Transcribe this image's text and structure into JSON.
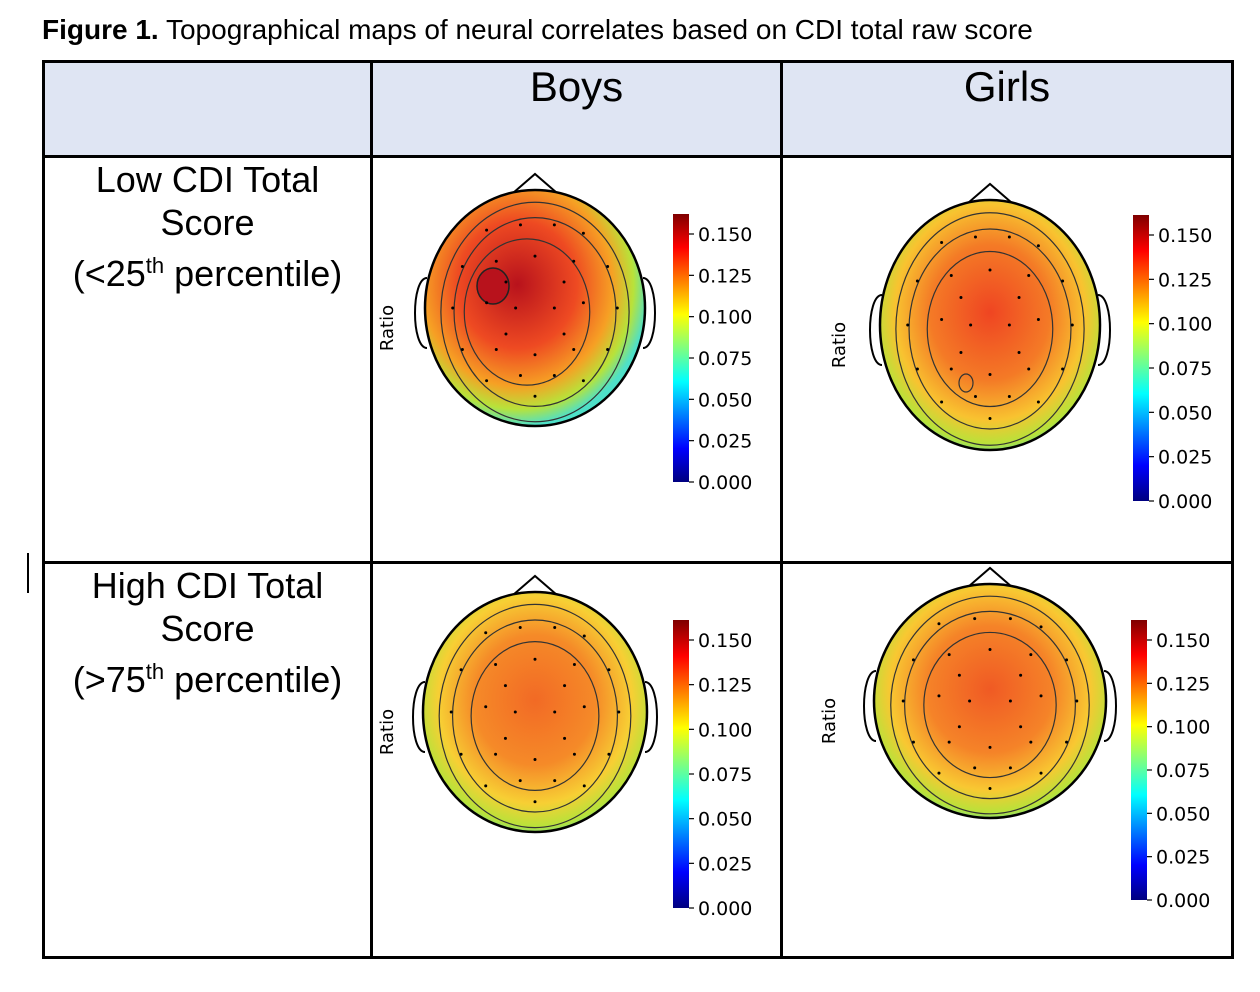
{
  "caption": {
    "label": "Figure 1.",
    "text": "Topographical maps of neural correlates based on CDI total raw score"
  },
  "columns": [
    "Boys",
    "Girls"
  ],
  "rows": [
    {
      "line1": "Low CDI Total",
      "line2": "Score",
      "cmp": "(<25",
      "sup": "th",
      "rest": " percentile)"
    },
    {
      "line1": "High CDI Total",
      "line2": "Score",
      "cmp": "(>75",
      "sup": "th",
      "rest": " percentile)"
    }
  ],
  "colorbar": {
    "ticks": [
      "0.150",
      "0.125",
      "0.100",
      "0.075",
      "0.050",
      "0.025",
      "0.000"
    ],
    "colormap": [
      "#00007f",
      "#0000ff",
      "#007fff",
      "#00ffff",
      "#7fff7f",
      "#ffff00",
      "#ff7f00",
      "#ff0000",
      "#7f0000"
    ]
  },
  "axis_label": "Ratio",
  "maps": [
    {
      "id": "boys-low",
      "group": "Boys",
      "condition": "Low CDI",
      "peak_region": "left frontal",
      "peak_color": "#b8121c",
      "core_color": "#ee4a22",
      "mid_color": "#f6a024",
      "edge_color": "#4ee0c8"
    },
    {
      "id": "girls-low",
      "group": "Girls",
      "condition": "Low CDI",
      "peak_region": "central",
      "peak_color": "#ef4522",
      "core_color": "#f47a26",
      "mid_color": "#f8c330",
      "edge_color": "#38d7d8"
    },
    {
      "id": "boys-high",
      "group": "Boys",
      "condition": "High CDI",
      "peak_region": "central",
      "peak_color": "#f26a25",
      "core_color": "#f58a28",
      "mid_color": "#f7cf34",
      "edge_color": "#40dccd"
    },
    {
      "id": "girls-high",
      "group": "Girls",
      "condition": "High CDI",
      "peak_region": "central",
      "peak_color": "#f05a24",
      "core_color": "#f58328",
      "mid_color": "#f8c832",
      "edge_color": "#3ad8d4"
    }
  ]
}
